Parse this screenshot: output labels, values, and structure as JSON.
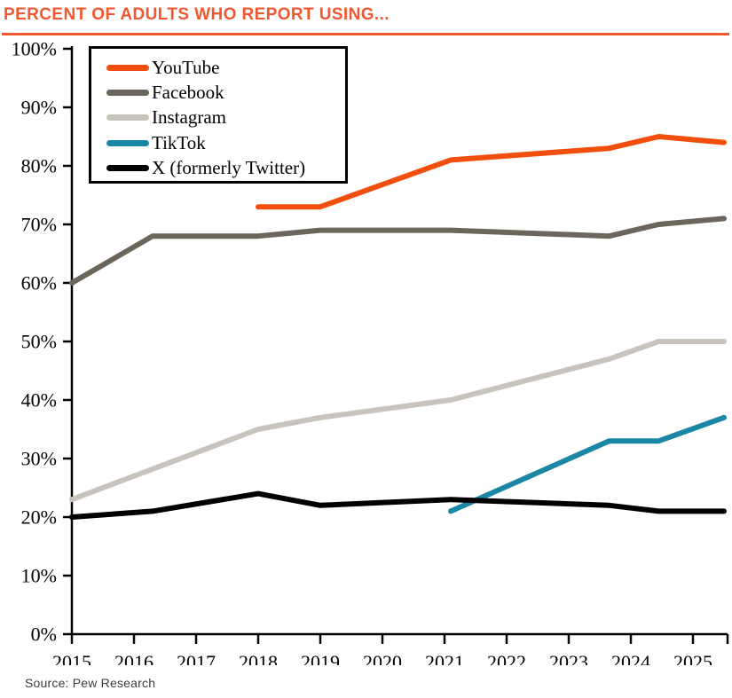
{
  "header": {
    "title": "PERCENT OF ADULTS WHO REPORT USING...",
    "accent_color": "#F15832"
  },
  "footer": {
    "source": "Source: Pew Research"
  },
  "chart_data": {
    "type": "line",
    "title": "PERCENT OF ADULTS WHO REPORT USING...",
    "xlabel": "",
    "ylabel": "",
    "xlim": [
      2015,
      2025.56
    ],
    "ylim": [
      0,
      100
    ],
    "grid": false,
    "legend_position": "top-left",
    "x_tick_years": [
      2015,
      2016,
      2017,
      2018,
      2019,
      2020,
      2021,
      2022,
      2023,
      2024,
      2025
    ],
    "y_tick_values": [
      0,
      10,
      20,
      30,
      40,
      50,
      60,
      70,
      80,
      90,
      100
    ],
    "y_tick_suffix": "%",
    "axis_color": "#000000",
    "series": [
      {
        "name": "YouTube",
        "color": "#F24E0D",
        "points": [
          [
            2018,
            73
          ],
          [
            2019,
            73
          ],
          [
            2021.1,
            81
          ],
          [
            2023.65,
            83
          ],
          [
            2024.45,
            85
          ],
          [
            2025.5,
            84
          ]
        ]
      },
      {
        "name": "Facebook",
        "color": "#6B655C",
        "points": [
          [
            2015,
            60
          ],
          [
            2016.3,
            68
          ],
          [
            2018,
            68
          ],
          [
            2019,
            69
          ],
          [
            2021.1,
            69
          ],
          [
            2023.65,
            68
          ],
          [
            2024.45,
            70
          ],
          [
            2025.5,
            71
          ]
        ]
      },
      {
        "name": "Instagram",
        "color": "#C8C3BC",
        "points": [
          [
            2015,
            23
          ],
          [
            2018,
            35
          ],
          [
            2019,
            37
          ],
          [
            2021.1,
            40
          ],
          [
            2023.65,
            47
          ],
          [
            2024.45,
            50
          ],
          [
            2025.5,
            50
          ]
        ]
      },
      {
        "name": "TikTok",
        "color": "#1C87A5",
        "points": [
          [
            2021.1,
            21
          ],
          [
            2023.65,
            33
          ],
          [
            2024.45,
            33
          ],
          [
            2025.5,
            37
          ]
        ]
      },
      {
        "name": "X (formerly Twitter)",
        "color": "#000000",
        "points": [
          [
            2015,
            20
          ],
          [
            2016.3,
            21
          ],
          [
            2018,
            24
          ],
          [
            2019,
            22
          ],
          [
            2021.1,
            23
          ],
          [
            2023.65,
            22
          ],
          [
            2024.45,
            21
          ],
          [
            2025.5,
            21
          ]
        ]
      }
    ]
  }
}
